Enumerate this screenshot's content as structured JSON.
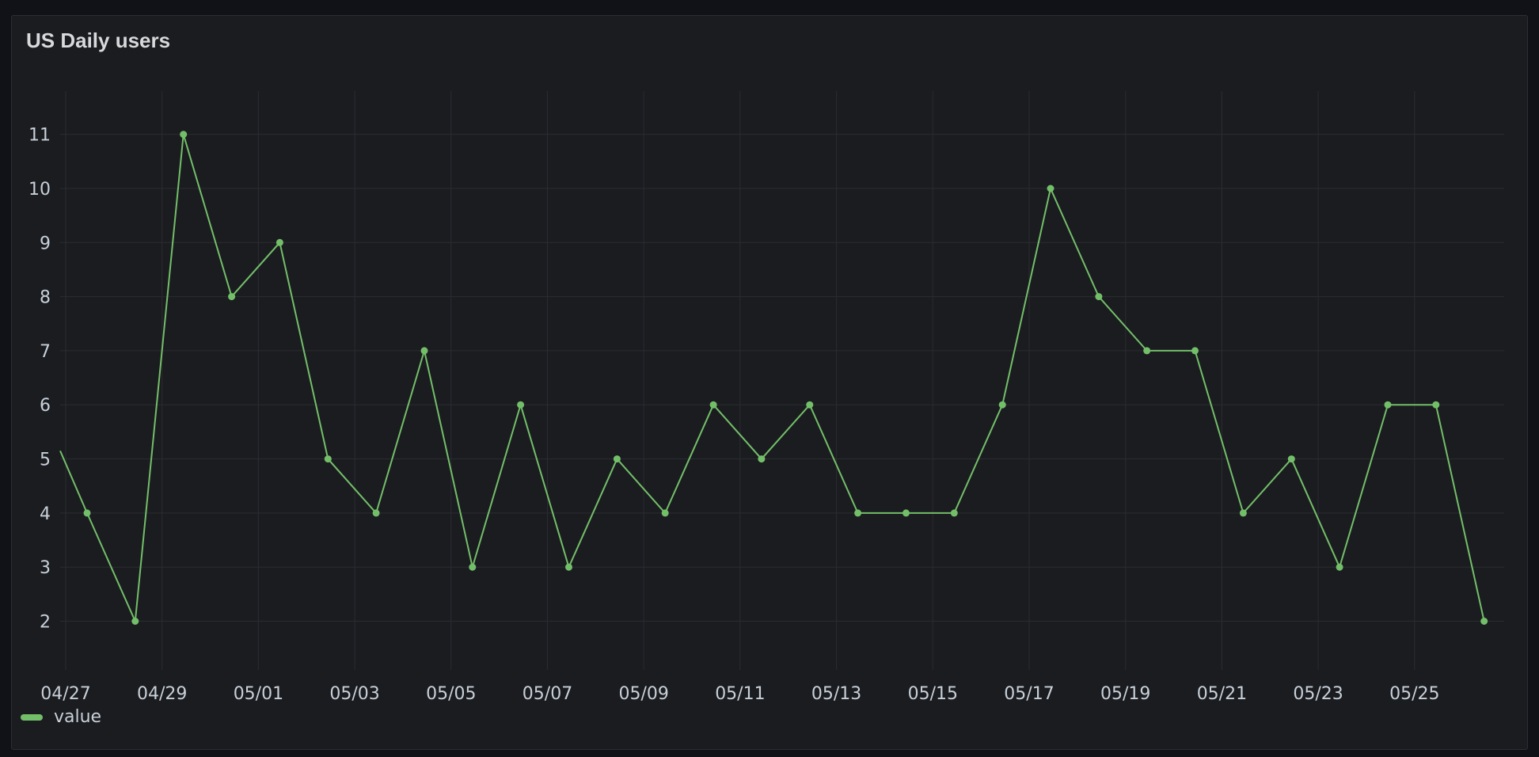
{
  "panel": {
    "title": "US Daily users"
  },
  "legend": {
    "items": [
      {
        "label": "value",
        "color": "#73bf69"
      }
    ]
  },
  "chart_data": {
    "type": "line",
    "title": "US Daily users",
    "xlabel": "",
    "ylabel": "",
    "x_tick_labels": [
      "04/27",
      "04/29",
      "05/01",
      "05/03",
      "05/05",
      "05/07",
      "05/09",
      "05/11",
      "05/13",
      "05/15",
      "05/17",
      "05/19",
      "05/21",
      "05/23",
      "05/25"
    ],
    "y_ticks": [
      2,
      3,
      4,
      5,
      6,
      7,
      8,
      9,
      10,
      11
    ],
    "ylim": [
      1.1,
      11.8
    ],
    "grid": true,
    "legend_position": "bottom-left",
    "series": [
      {
        "name": "value",
        "color": "#73bf69",
        "x": [
          "04/27",
          "04/28",
          "04/29",
          "04/30",
          "05/01",
          "05/02",
          "05/03",
          "05/04",
          "05/05",
          "05/06",
          "05/07",
          "05/08",
          "05/09",
          "05/10",
          "05/11",
          "05/12",
          "05/13",
          "05/14",
          "05/15",
          "05/16",
          "05/17",
          "05/18",
          "05/19",
          "05/20",
          "05/21",
          "05/22",
          "05/23",
          "05/24",
          "05/25",
          "05/26"
        ],
        "values": [
          4,
          2,
          11,
          8,
          9,
          5,
          4,
          7,
          3,
          6,
          3,
          5,
          4,
          6,
          5,
          6,
          4,
          4,
          4,
          6,
          10,
          8,
          7,
          7,
          4,
          5,
          3,
          6,
          6,
          2
        ]
      }
    ]
  }
}
